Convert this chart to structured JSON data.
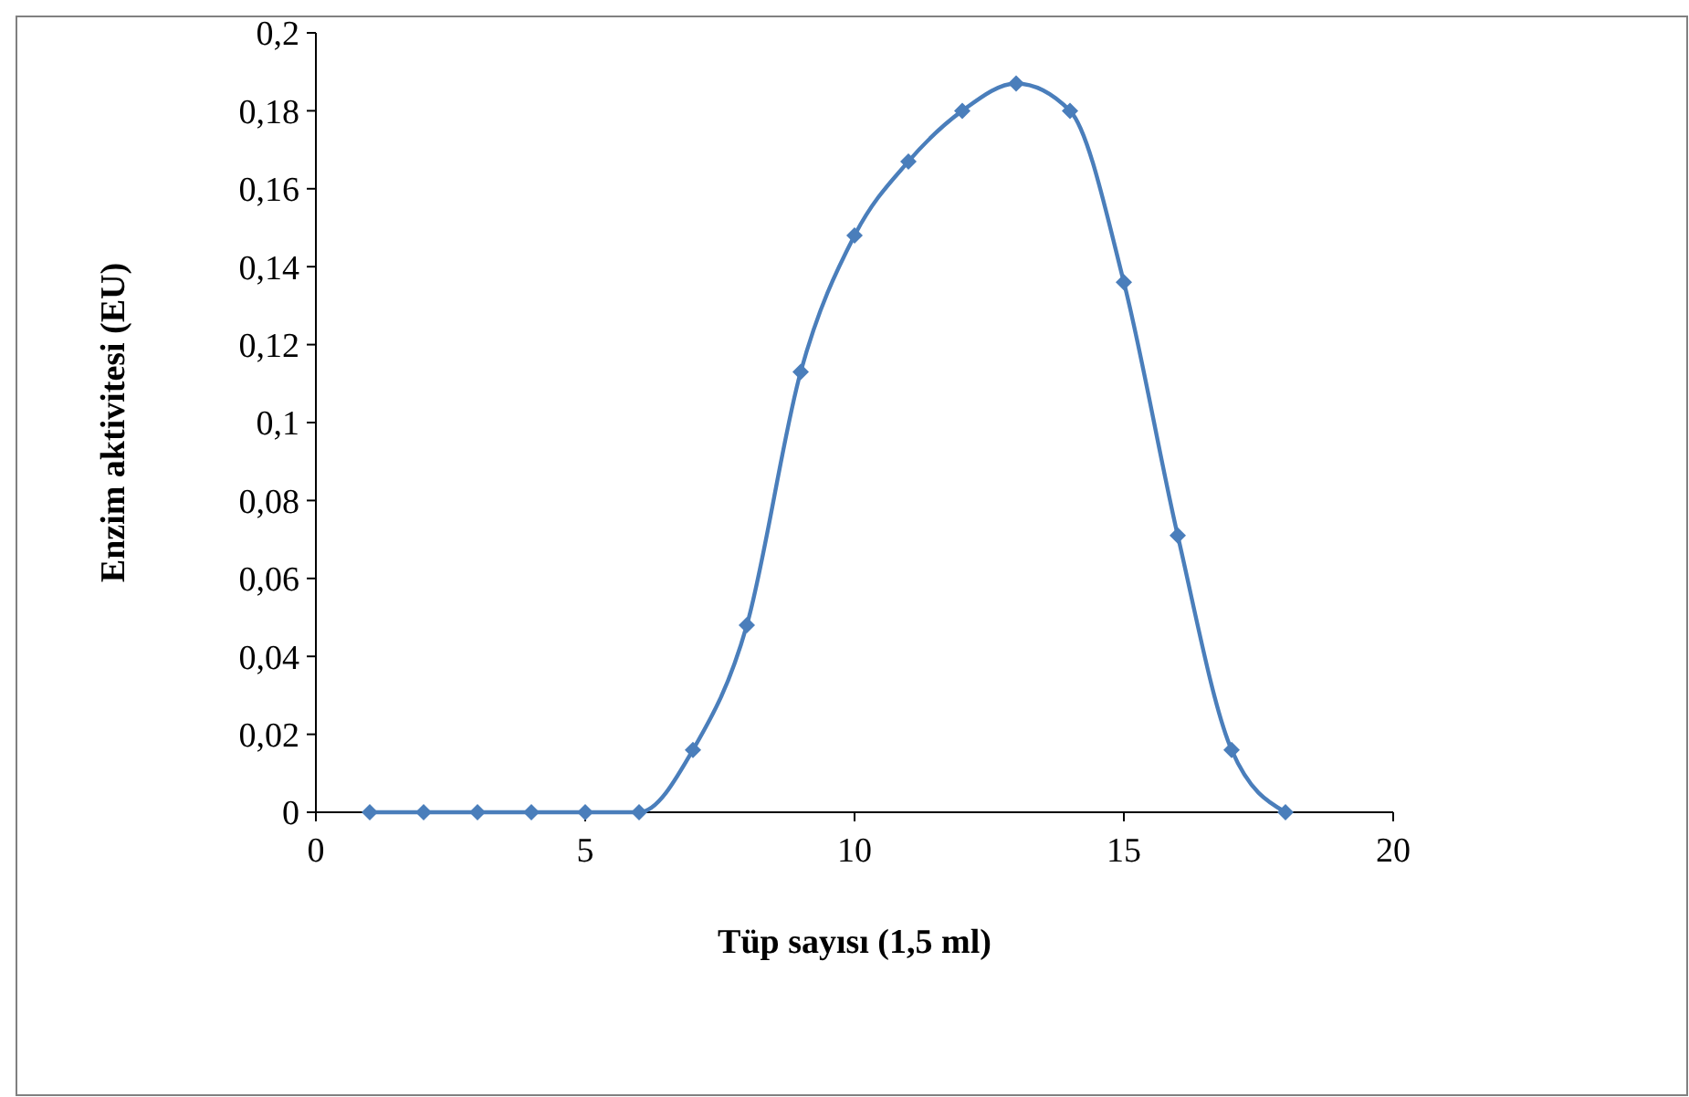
{
  "chart_data": {
    "type": "line",
    "xlabel": "Tüp sayısı (1,5 ml)",
    "ylabel": "Enzim aktivitesi (EU)",
    "x": [
      1,
      2,
      3,
      4,
      5,
      6,
      7,
      8,
      9,
      10,
      11,
      12,
      13,
      14,
      15,
      16,
      17,
      18
    ],
    "series": [
      {
        "color": "#4a7ebb",
        "values": [
          0,
          0,
          0,
          0,
          0,
          0,
          0.016,
          0.048,
          0.113,
          0.148,
          0.167,
          0.18,
          0.187,
          0.18,
          0.136,
          0.071,
          0.016,
          0
        ]
      }
    ],
    "xlim": [
      0,
      20
    ],
    "xticks": [
      0,
      5,
      10,
      15,
      20
    ],
    "ylim": [
      0,
      0.2
    ],
    "yticks": [
      {
        "value": 0,
        "label": "0"
      },
      {
        "value": 0.02,
        "label": "0,02"
      },
      {
        "value": 0.04,
        "label": "0,04"
      },
      {
        "value": 0.06,
        "label": "0,06"
      },
      {
        "value": 0.08,
        "label": "0,08"
      },
      {
        "value": 0.1,
        "label": "0,1"
      },
      {
        "value": 0.12,
        "label": "0,12"
      },
      {
        "value": 0.14,
        "label": "0,14"
      },
      {
        "value": 0.16,
        "label": "0,16"
      },
      {
        "value": 0.18,
        "label": "0,18"
      },
      {
        "value": 0.2,
        "label": "0,2"
      }
    ],
    "grid": false,
    "marker": "diamond",
    "line_style": "solid"
  }
}
